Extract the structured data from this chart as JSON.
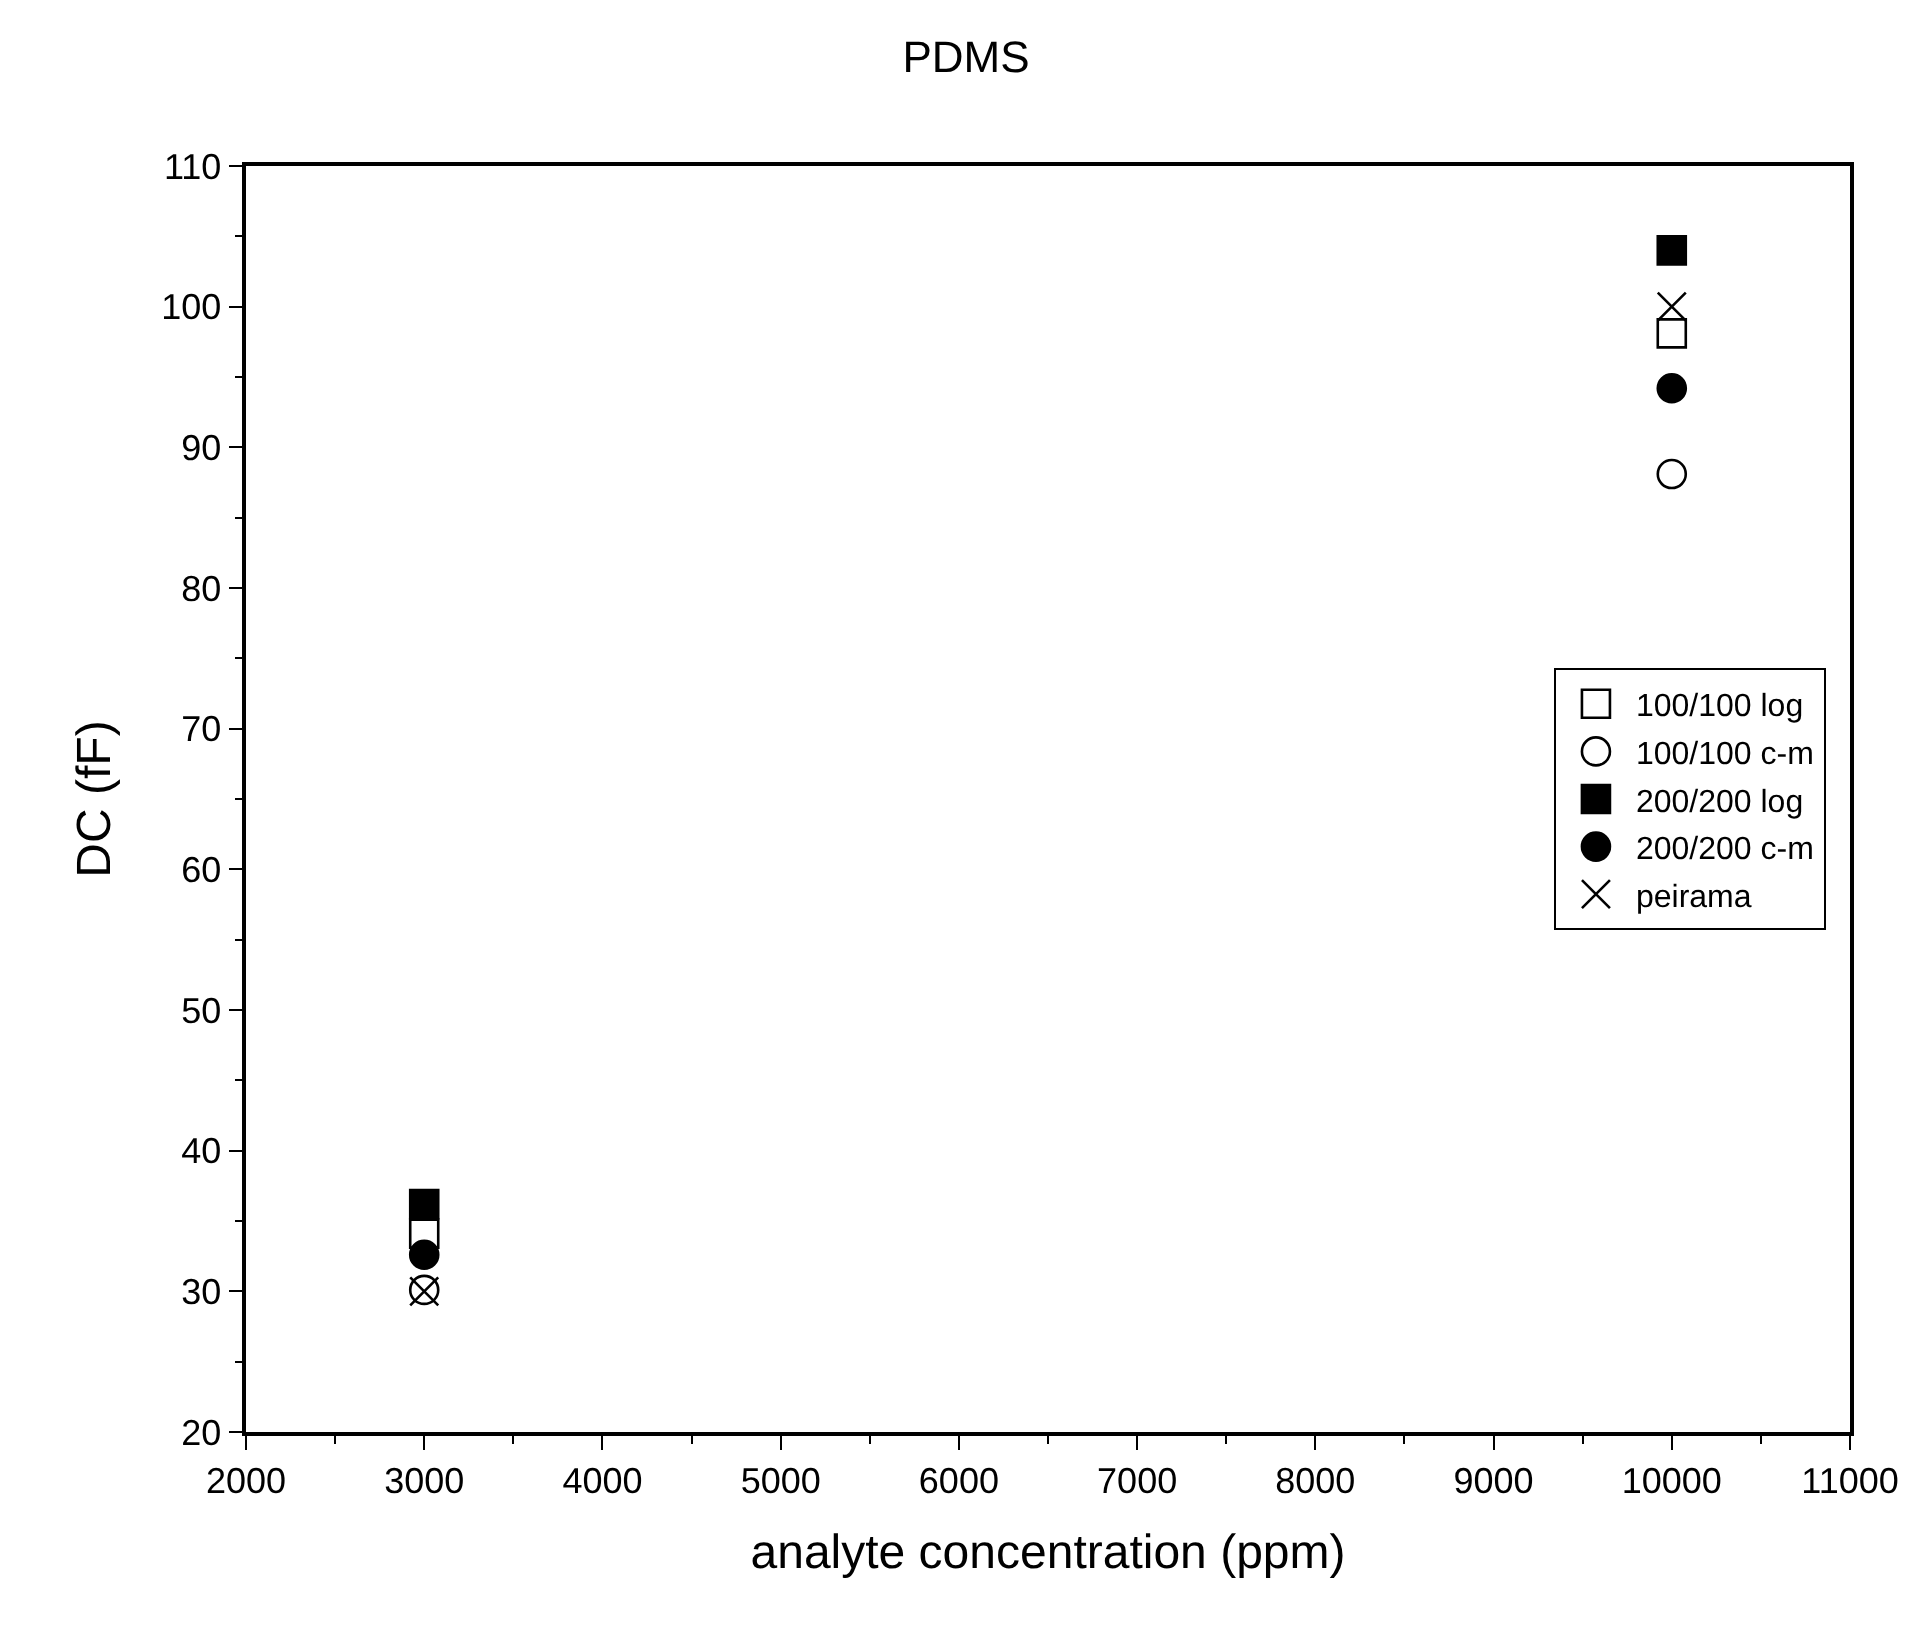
{
  "chart_data": {
    "type": "scatter",
    "title": "PDMS",
    "xlabel": "analyte concentration (ppm)",
    "ylabel": "DC (fF)",
    "x": [
      3000,
      10000
    ],
    "series": [
      {
        "name": "100/100 log",
        "color": "#000000",
        "marker": "square-open",
        "values": [
          34.1,
          98.1
        ]
      },
      {
        "name": "100/100 c-m",
        "color": "#000000",
        "marker": "circle-open",
        "values": [
          30.1,
          88.1
        ]
      },
      {
        "name": "200/200 log",
        "color": "#000000",
        "marker": "square",
        "values": [
          36.2,
          104
        ]
      },
      {
        "name": "200/200 c-m",
        "color": "#000000",
        "marker": "circle",
        "values": [
          32.6,
          94.2
        ]
      },
      {
        "name": "peirama",
        "color": "#000000",
        "marker": "cross",
        "values": [
          30,
          100
        ]
      }
    ],
    "xlim": [
      2000,
      11000
    ],
    "xticks": [
      2000,
      3000,
      4000,
      5000,
      6000,
      7000,
      8000,
      9000,
      10000,
      11000
    ],
    "ylim": [
      20,
      110
    ],
    "yticks": [
      20,
      30,
      40,
      50,
      60,
      70,
      80,
      90,
      100,
      110
    ],
    "grid": false,
    "legend": "right"
  }
}
